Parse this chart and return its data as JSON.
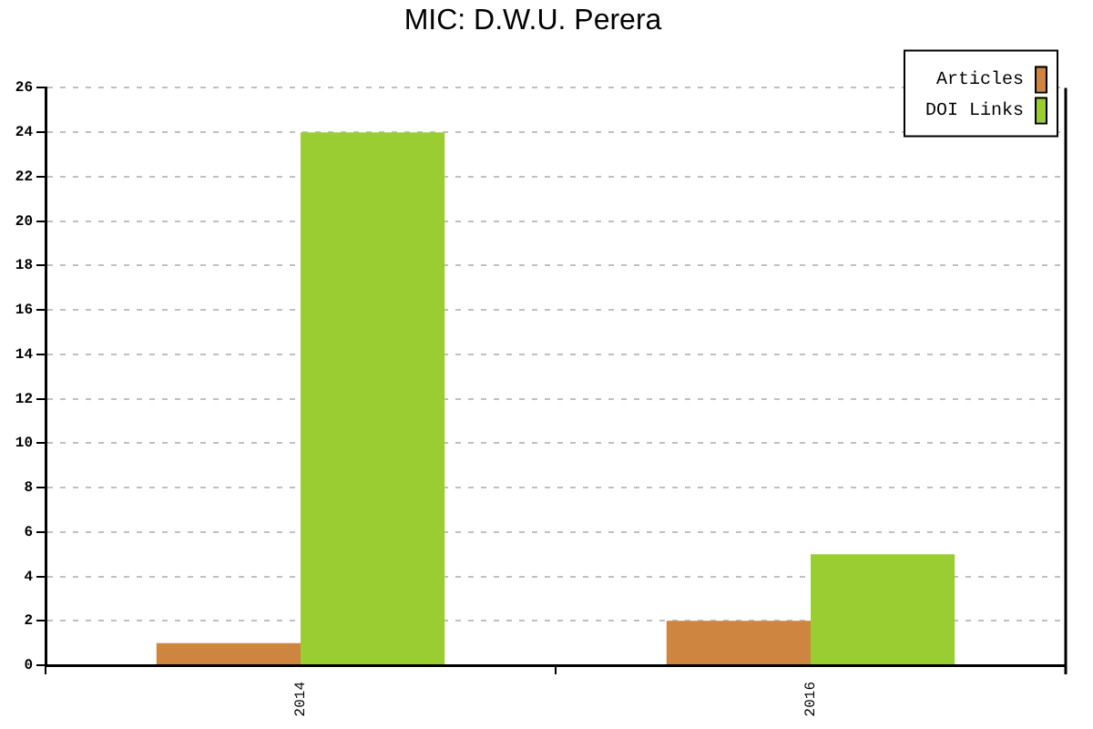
{
  "chart_data": {
    "type": "bar",
    "title": "MIC: D.W.U. Perera",
    "categories": [
      "2014",
      "2016"
    ],
    "series": [
      {
        "name": "Articles",
        "color": "#cd853f",
        "values": [
          1,
          2
        ]
      },
      {
        "name": "DOI Links",
        "color": "#9acd32",
        "values": [
          24,
          5
        ]
      }
    ],
    "ylim": [
      0,
      26
    ],
    "yticks": [
      0,
      2,
      4,
      6,
      8,
      10,
      12,
      14,
      16,
      18,
      20,
      22,
      24,
      26
    ],
    "grid": "y",
    "legend": "top right"
  }
}
